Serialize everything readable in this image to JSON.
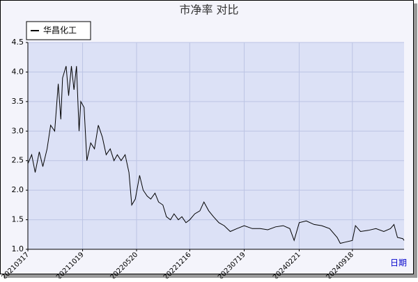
{
  "chart_data": {
    "type": "line",
    "title": "市净率 对比",
    "xlabel": "日期",
    "series": [
      {
        "name": "华昌化工",
        "color": "#000000",
        "x": [
          "20210317",
          "20210401",
          "20210415",
          "20210501",
          "20210515",
          "20210601",
          "20210615",
          "20210701",
          "20210715",
          "20210725",
          "20210801",
          "20210815",
          "20210825",
          "20210905",
          "20210915",
          "20210925",
          "20211005",
          "20211012",
          "20211025",
          "20211105",
          "20211120",
          "20211205",
          "20211220",
          "20220105",
          "20220120",
          "20220205",
          "20220220",
          "20220305",
          "20220320",
          "20220405",
          "20220420",
          "20220501",
          "20220515",
          "20220601",
          "20220615",
          "20220701",
          "20220715",
          "20220801",
          "20220815",
          "20220901",
          "20220915",
          "20221001",
          "20221015",
          "20221101",
          "20221115",
          "20221201",
          "20221216",
          "20230105",
          "20230125",
          "20230210",
          "20230301",
          "20230320",
          "20230410",
          "20230501",
          "20230525",
          "20230620",
          "20230719",
          "20230820",
          "20230920",
          "20231020",
          "20231120",
          "20231220",
          "20240115",
          "20240201",
          "20240221",
          "20240320",
          "20240420",
          "20240520",
          "20240620",
          "20240720",
          "20240801",
          "20240820",
          "20240918",
          "20240930",
          "20241020",
          "20241120",
          "20241220",
          "20250120",
          "20250215",
          "20250301",
          "20250315",
          "20250405",
          "20250410"
        ],
        "values": [
          2.45,
          2.6,
          2.3,
          2.65,
          2.4,
          2.7,
          3.1,
          3.0,
          3.8,
          3.2,
          3.9,
          4.1,
          3.6,
          4.1,
          3.7,
          4.1,
          3.0,
          3.5,
          3.4,
          2.5,
          2.8,
          2.7,
          3.1,
          2.9,
          2.6,
          2.7,
          2.5,
          2.6,
          2.5,
          2.6,
          2.3,
          1.75,
          1.85,
          2.25,
          2.0,
          1.9,
          1.85,
          1.95,
          1.8,
          1.75,
          1.55,
          1.5,
          1.6,
          1.5,
          1.55,
          1.45,
          1.5,
          1.6,
          1.65,
          1.8,
          1.65,
          1.55,
          1.45,
          1.4,
          1.3,
          1.35,
          1.4,
          1.35,
          1.35,
          1.33,
          1.38,
          1.4,
          1.35,
          1.15,
          1.45,
          1.48,
          1.42,
          1.4,
          1.35,
          1.2,
          1.1,
          1.12,
          1.15,
          1.4,
          1.3,
          1.32,
          1.35,
          1.3,
          1.35,
          1.42,
          1.2,
          1.18,
          1.15
        ]
      }
    ],
    "xlim": [
      "20210317",
      "20250410"
    ],
    "xticks": [
      "20210317",
      "20211019",
      "20220520",
      "20221216",
      "20230719",
      "20240221",
      "20240918"
    ],
    "ylim": [
      1,
      4.5
    ],
    "yticks": [
      {
        "value": 1,
        "label": "1.0"
      },
      {
        "value": 1.5,
        "label": "1.5"
      },
      {
        "value": 2,
        "label": "2.0"
      },
      {
        "value": 2.5,
        "label": "2.5"
      },
      {
        "value": 3,
        "label": "3.0"
      },
      {
        "value": 3.5,
        "label": "3.5"
      },
      {
        "value": 4,
        "label": "4.0"
      },
      {
        "value": 4.5,
        "label": "4.5"
      }
    ],
    "grid": true,
    "legend": "top-left"
  }
}
